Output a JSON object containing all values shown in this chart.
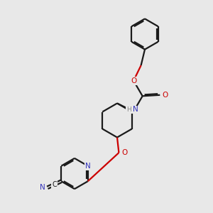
{
  "bg_color": "#e8e8e8",
  "bond_color": "#1a1a1a",
  "O_color": "#cc0000",
  "N_color": "#3333bb",
  "C_color": "#1a1a1a",
  "lw": 1.6,
  "dbo": 0.06,
  "xlim": [
    0,
    10
  ],
  "ylim": [
    0,
    10
  ]
}
